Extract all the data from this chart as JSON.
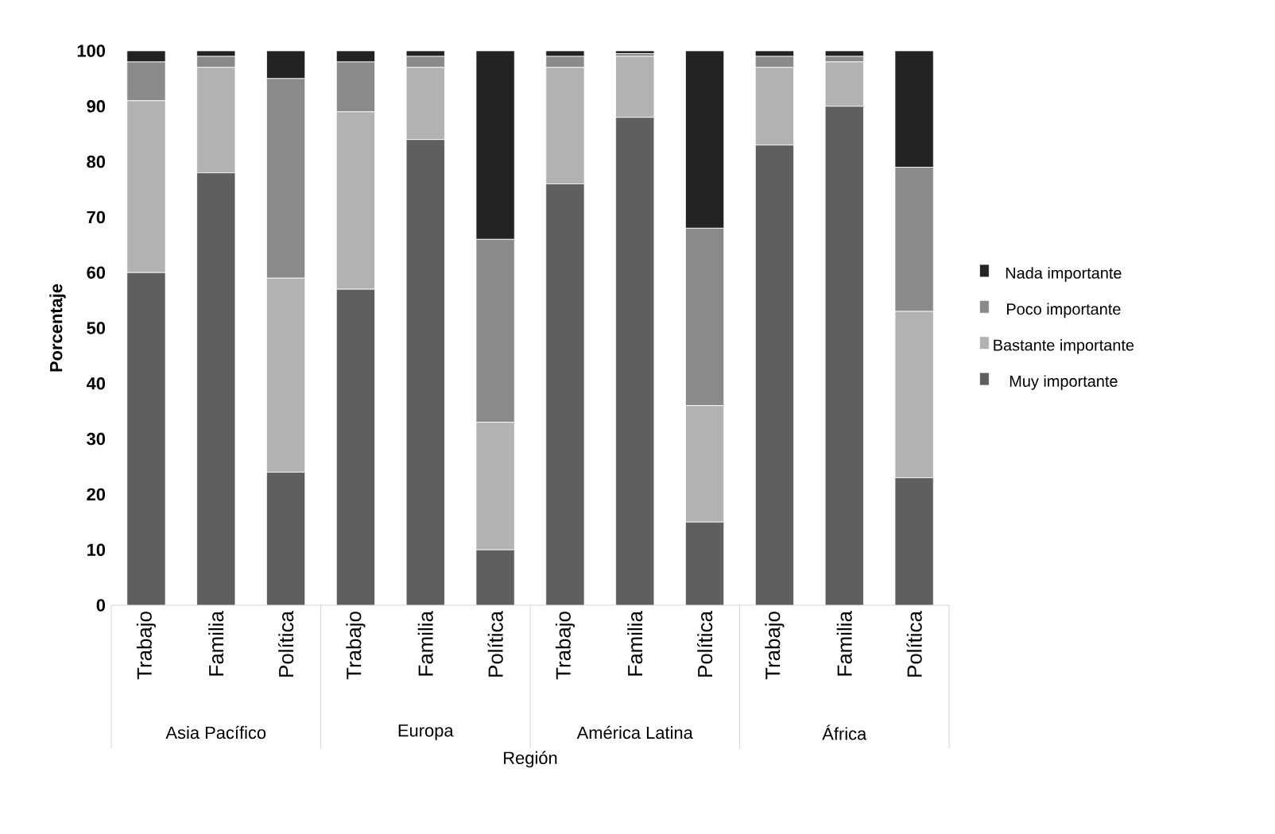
{
  "chart_data": {
    "type": "bar",
    "stacked": true,
    "xlabel": "Región",
    "ylabel": "Porcentaje",
    "categories": [
      "Trabajo",
      "Familia",
      "Política",
      "Trabajo",
      "Familia",
      "Política",
      "Trabajo",
      "Familia",
      "Política",
      "Trabajo",
      "Familia",
      "Política"
    ],
    "annotations": [
      "Asia Pacífico",
      "Europa",
      "América Latina",
      "África"
    ],
    "series": [
      {
        "name": "Muy importante",
        "color": "#5f5f5f",
        "values": [
          60,
          78,
          24,
          57,
          84,
          10,
          76,
          88,
          15,
          83,
          90,
          23
        ]
      },
      {
        "name": "Bastante importante",
        "color": "#b2b2b2",
        "values": [
          31,
          19,
          35,
          32,
          13,
          23,
          21,
          11,
          21,
          14,
          8,
          30
        ]
      },
      {
        "name": "Poco importante",
        "color": "#8a8a8a",
        "values": [
          7,
          2,
          36,
          9,
          2,
          33,
          2,
          0.5,
          32,
          2,
          1,
          26
        ]
      },
      {
        "name": "Nada importante",
        "color": "#222222",
        "values": [
          2,
          1,
          5,
          2,
          1,
          34,
          1,
          0.5,
          32,
          1,
          1,
          21
        ]
      }
    ],
    "ylim": [
      0,
      100
    ],
    "yticks": [
      0,
      10,
      20,
      30,
      40,
      50,
      60,
      70,
      80,
      90,
      100
    ],
    "legend": "right",
    "grid": false
  }
}
